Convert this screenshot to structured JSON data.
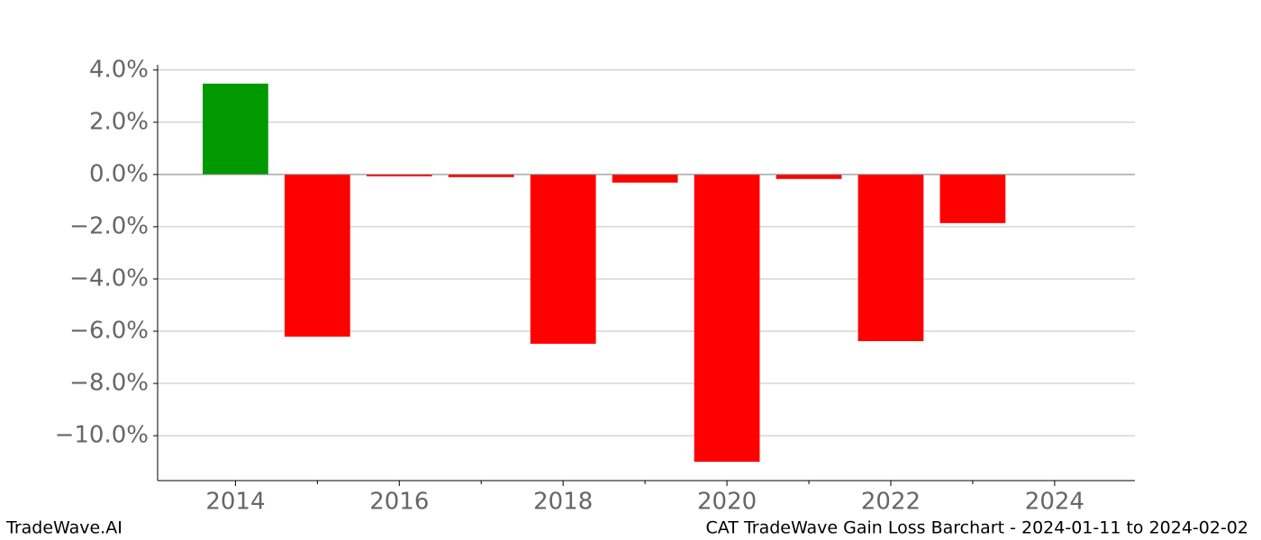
{
  "chart_data": {
    "type": "bar",
    "x": [
      2014,
      2015,
      2016,
      2017,
      2018,
      2019,
      2020,
      2021,
      2022,
      2023
    ],
    "values": [
      3.48,
      -6.21,
      -0.07,
      -0.1,
      -6.48,
      -0.31,
      -11.0,
      -0.17,
      -6.38,
      -1.86
    ],
    "positive_color": "#009900",
    "negative_color": "#ff0000",
    "xlim": [
      2013.05,
      2024.98
    ],
    "xticks": [
      2014,
      2016,
      2018,
      2020,
      2022,
      2024
    ],
    "xminorticks": [
      2015,
      2017,
      2019,
      2021,
      2023
    ],
    "ylim": [
      -11.72,
      4.2
    ],
    "yticks": [
      {
        "value": 4,
        "label": "4.0%"
      },
      {
        "value": 2,
        "label": "2.0%"
      },
      {
        "value": 0,
        "label": "0.0%"
      },
      {
        "value": -2,
        "label": "−2.0%"
      },
      {
        "value": -4,
        "label": "−4.0%"
      },
      {
        "value": -6,
        "label": "−6.0%"
      },
      {
        "value": -8,
        "label": "−8.0%"
      },
      {
        "value": -10,
        "label": "−10.0%"
      }
    ],
    "grid": true,
    "footer_left": "TradeWave.AI",
    "footer_right": "CAT TradeWave Gain Loss Barchart - 2024-01-11 to 2024-02-02"
  }
}
